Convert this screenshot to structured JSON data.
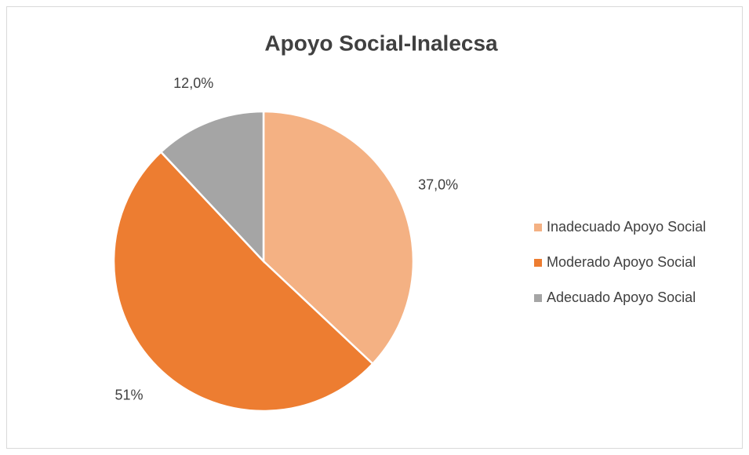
{
  "chart_data": {
    "type": "pie",
    "title": "Apoyo Social-Inalecsa",
    "categories": [
      "Inadecuado Apoyo Social",
      "Moderado Apoyo Social",
      "Adecuado Apoyo Social"
    ],
    "values": [
      37,
      51,
      12
    ],
    "value_labels": [
      "37,0%",
      "51%",
      "12,0%"
    ],
    "colors": [
      "#F4B183",
      "#ED7D31",
      "#A5A5A5"
    ],
    "legend": "right"
  }
}
